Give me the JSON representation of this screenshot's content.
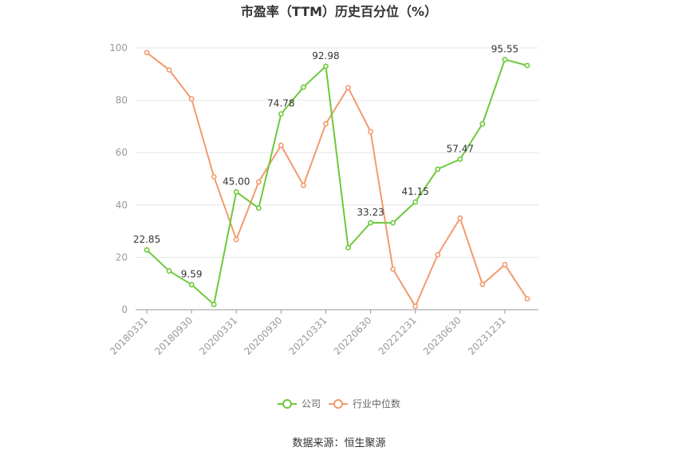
{
  "chart_data": {
    "type": "line",
    "title": "市盈率（TTM）历史百分位（%）",
    "xlabel": "",
    "ylabel": "",
    "ylim": [
      0,
      100
    ],
    "yticks": [
      "0",
      "20",
      "40",
      "60",
      "80",
      "100"
    ],
    "x_tick_labels": [
      "20180331",
      "20180930",
      "20200331",
      "20200930",
      "20210331",
      "20220630",
      "20221231",
      "20230630",
      "20231231"
    ],
    "x_tick_indices": [
      0,
      2,
      4,
      6,
      8,
      10,
      12,
      14,
      16
    ],
    "point_count": 18,
    "grid": true,
    "legend_position": "bottom",
    "series": [
      {
        "name": "公司",
        "color": "#6cc93a",
        "values": [
          22.85,
          14.8,
          9.59,
          2.0,
          45.0,
          38.8,
          74.78,
          85.0,
          92.98,
          23.7,
          33.23,
          33.2,
          41.15,
          53.7,
          57.47,
          71.0,
          95.55,
          93.3
        ],
        "labels": {
          "0": "22.85",
          "2": "9.59",
          "4": "45.00",
          "6": "74.78",
          "8": "92.98",
          "10": "33.23",
          "12": "41.15",
          "14": "57.47",
          "16": "95.55"
        }
      },
      {
        "name": "行业中位数",
        "color": "#f39a6d",
        "values": [
          98.2,
          91.6,
          80.5,
          50.8,
          26.8,
          48.8,
          62.8,
          47.5,
          71.0,
          84.8,
          68.0,
          15.5,
          1.3,
          21.0,
          35.0,
          9.7,
          17.2,
          4.2
        ],
        "labels": {}
      }
    ]
  },
  "source": "数据来源：恒生聚源"
}
